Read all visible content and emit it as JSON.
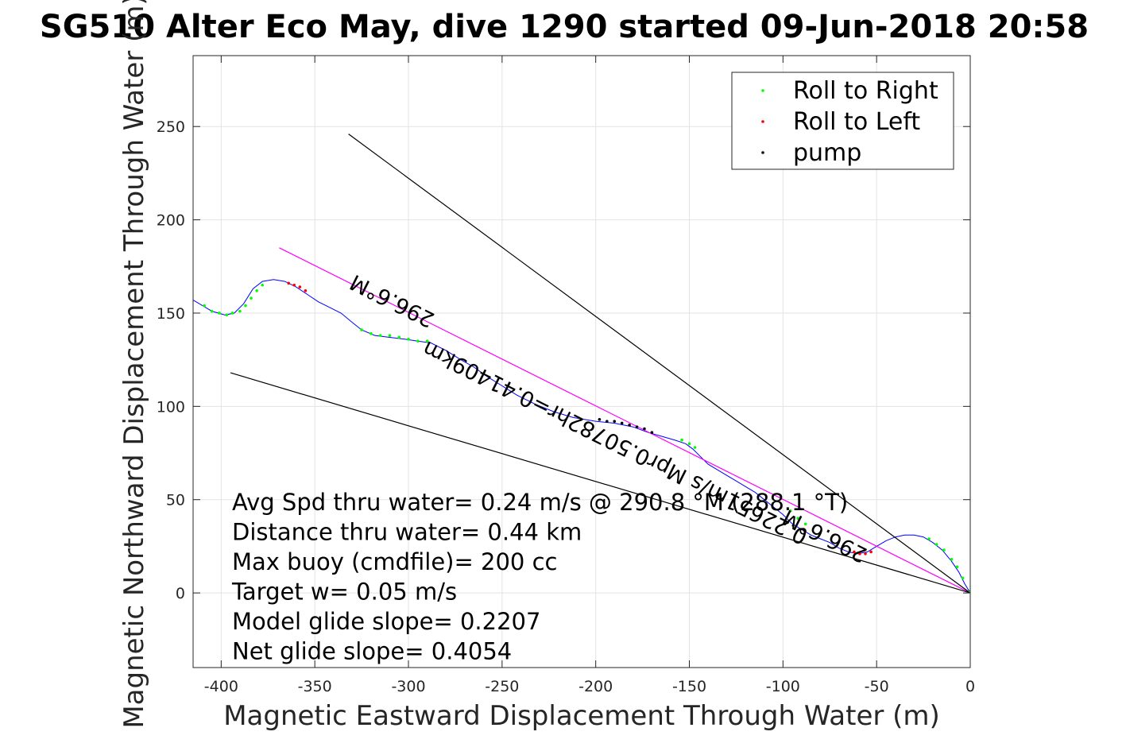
{
  "chart_data": {
    "type": "line",
    "title": "SG510 Alter Eco May, dive 1290 started 09-Jun-2018 20:58",
    "xlabel": "Magnetic Eastward Displacement Through Water (m)",
    "ylabel": "Magnetic Northward Displacement Through Water (m)",
    "xlim": [
      -415,
      0
    ],
    "ylim": [
      -40,
      288
    ],
    "xticks": [
      -400,
      -350,
      -300,
      -250,
      -200,
      -150,
      -100,
      -50,
      0
    ],
    "yticks": [
      0,
      50,
      100,
      150,
      200,
      250
    ],
    "grid": true,
    "legend": {
      "position": "top-right",
      "entries": [
        {
          "name": "Roll to Right",
          "color": "#00ff00"
        },
        {
          "name": "Roll to Left",
          "color": "#ff0000"
        },
        {
          "name": "pump",
          "color": "#000000"
        }
      ]
    },
    "series": [
      {
        "name": "",
        "role": "track",
        "color": "#0000ff",
        "x": [
          -415,
          -405,
          -398,
          -393,
          -388,
          -383,
          -378,
          -372,
          -366,
          -360,
          -354,
          -348,
          -342,
          -336,
          -330,
          -325,
          -318,
          -310,
          -302,
          -295,
          -288,
          -280,
          -272,
          -265,
          -258,
          -250,
          -242,
          -232,
          -222,
          -212,
          -200,
          -190,
          -180,
          -172,
          -165,
          -158,
          -152,
          -148,
          -144,
          -140,
          -135,
          -130,
          -125,
          -120,
          -115,
          -110,
          -105,
          -100,
          -95,
          -90,
          -85,
          -80,
          -75,
          -70,
          -65,
          -60,
          -55,
          -50,
          -45,
          -40,
          -35,
          -30,
          -25,
          -20,
          -15,
          -10,
          -6,
          -3,
          0
        ],
        "y": [
          157,
          151,
          149,
          150,
          155,
          163,
          167,
          168,
          167,
          164,
          160,
          156,
          153,
          150,
          145,
          141,
          138,
          137,
          136,
          135,
          134,
          130,
          125,
          121,
          116,
          111,
          106,
          101,
          97,
          94,
          92,
          91,
          89,
          86,
          84,
          82,
          80,
          77,
          73,
          69,
          66,
          63,
          60,
          57,
          54,
          50,
          46,
          42,
          37,
          34,
          31,
          29,
          27,
          24,
          22,
          21,
          22,
          25,
          28,
          30,
          31,
          31,
          30,
          27,
          23,
          17,
          11,
          5,
          0
        ]
      },
      {
        "name": "",
        "role": "course-line",
        "color": "#ff00ff",
        "x": [
          -369,
          0
        ],
        "y": [
          185,
          0
        ]
      },
      {
        "name": "",
        "role": "envelope-upper",
        "color": "#000000",
        "x": [
          -332,
          0
        ],
        "y": [
          246,
          0
        ]
      },
      {
        "name": "",
        "role": "envelope-lower",
        "color": "#000000",
        "x": [
          -395,
          0
        ],
        "y": [
          118,
          0
        ]
      },
      {
        "name": "Roll to Right",
        "role": "points",
        "color": "#00ff00",
        "x": [
          -409,
          -405,
          -401,
          -397,
          -394,
          -390,
          -387,
          -384,
          -381,
          -378,
          -325,
          -320,
          -315,
          -310,
          -305,
          -300,
          -295,
          -290,
          -154,
          -150,
          -147,
          -96,
          -92,
          -88,
          -22,
          -18,
          -14,
          -10,
          -7,
          -4,
          0
        ],
        "y": [
          154,
          151,
          150,
          149,
          150,
          151,
          154,
          158,
          162,
          165,
          141,
          139,
          138,
          138,
          137,
          136,
          135,
          135,
          82,
          80,
          78,
          44,
          40,
          37,
          29,
          26,
          23,
          18,
          14,
          8,
          1
        ]
      },
      {
        "name": "Roll to Left",
        "role": "points",
        "color": "#ff0000",
        "x": [
          -364,
          -361,
          -358,
          -355,
          -62,
          -59,
          -56,
          -53
        ],
        "y": [
          166,
          165,
          164,
          162,
          22,
          21,
          21,
          22
        ]
      },
      {
        "name": "pump",
        "role": "points",
        "color": "#000000",
        "x": [
          -198,
          -194,
          -190,
          -186,
          -182,
          -178,
          -174,
          -170
        ],
        "y": [
          93,
          92,
          92,
          91,
          90,
          89,
          88,
          86
        ]
      }
    ],
    "annotations": [
      {
        "text": "296.6°M",
        "x": -307,
        "y": 160,
        "angle_deg": 206.6
      },
      {
        "text": "0.22651m/s Mpr0.50782hr=0.41409km",
        "x": -188,
        "y": 84,
        "angle_deg": 206.6
      },
      {
        "text": "296.6°M",
        "x": -76,
        "y": 34,
        "angle_deg": 206.6
      }
    ],
    "stats_box": [
      "Avg Spd thru water=  0.24 m/s @ 290.8 °M (288.1 °T)",
      "Distance thru water=  0.44 km",
      "Max buoy (cmdfile)= 200 cc",
      "Target w= 0.05 m/s",
      "Model glide slope= 0.2207",
      "Net glide slope= 0.4054"
    ]
  }
}
